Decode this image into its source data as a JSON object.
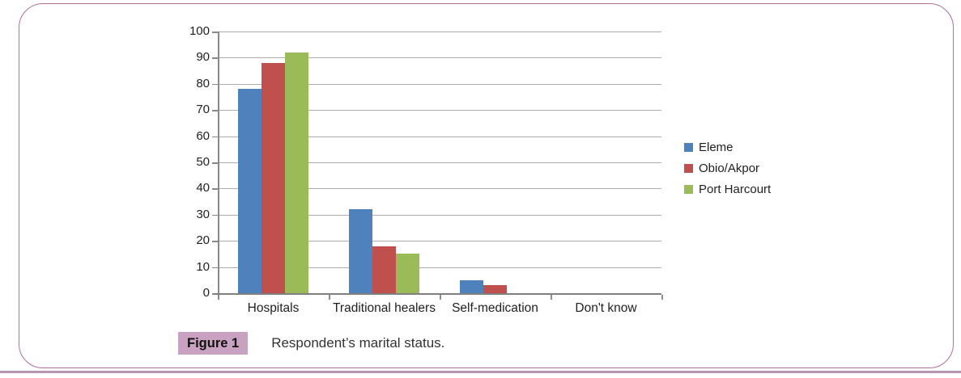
{
  "frame": {
    "border_color": "#b0719f",
    "bottom_rule_color": "#bb93b3"
  },
  "chart_data": {
    "type": "bar",
    "title": "",
    "xlabel": "",
    "ylabel": "",
    "categories": [
      "Hospitals",
      "Traditional healers",
      "Self-medication",
      "Don't know"
    ],
    "series": [
      {
        "name": "Eleme",
        "color": "#4F81BD",
        "values": [
          78,
          32,
          5,
          0
        ]
      },
      {
        "name": "Obio/Akpor",
        "color": "#C0504D",
        "values": [
          88,
          18,
          3,
          0
        ]
      },
      {
        "name": "Port Harcourt",
        "color": "#9BBB59",
        "values": [
          92,
          15,
          0,
          0
        ]
      }
    ],
    "ylim": [
      0,
      100
    ],
    "ytick_step": 10,
    "grid": true,
    "legend_position": "right",
    "axis_color": "#8a8a8a",
    "gridline_color": "#adadad"
  },
  "caption": {
    "label": "Figure 1",
    "text": "Respondent’s marital status.",
    "label_bg": "#c8a2c0"
  }
}
